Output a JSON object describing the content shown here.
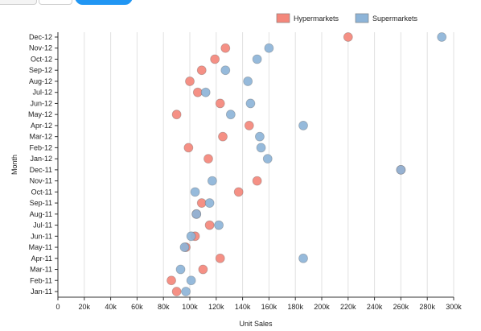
{
  "chart_data": {
    "type": "scatter",
    "xlabel": "Unit Sales",
    "ylabel": "Month",
    "xlim": [
      0,
      300000
    ],
    "x_ticks": [
      {
        "value": 0,
        "label": "0"
      },
      {
        "value": 20000,
        "label": "20k"
      },
      {
        "value": 40000,
        "label": "40k"
      },
      {
        "value": 60000,
        "label": "60k"
      },
      {
        "value": 80000,
        "label": "80k"
      },
      {
        "value": 100000,
        "label": "100k"
      },
      {
        "value": 120000,
        "label": "120k"
      },
      {
        "value": 140000,
        "label": "140k"
      },
      {
        "value": 160000,
        "label": "160k"
      },
      {
        "value": 180000,
        "label": "180k"
      },
      {
        "value": 200000,
        "label": "200k"
      },
      {
        "value": 220000,
        "label": "220k"
      },
      {
        "value": 240000,
        "label": "240k"
      },
      {
        "value": 260000,
        "label": "260k"
      },
      {
        "value": 280000,
        "label": "280k"
      },
      {
        "value": 300000,
        "label": "300k"
      }
    ],
    "categories": [
      "Dec-12",
      "Nov-12",
      "Oct-12",
      "Sep-12",
      "Aug-12",
      "Jul-12",
      "Jun-12",
      "May-12",
      "Apr-12",
      "Mar-12",
      "Feb-12",
      "Jan-12",
      "Dec-11",
      "Nov-11",
      "Oct-11",
      "Sep-11",
      "Aug-11",
      "Jul-11",
      "Jun-11",
      "May-11",
      "Apr-11",
      "Mar-11",
      "Feb-11",
      "Jan-11"
    ],
    "grid": "vertical",
    "legend_position": "top-right",
    "series": [
      {
        "name": "Hypermarkets",
        "color": "#f4877b",
        "values": [
          220000,
          127000,
          119000,
          109000,
          100000,
          106000,
          123000,
          90000,
          145000,
          125000,
          99000,
          114000,
          260000,
          151000,
          137000,
          109000,
          105000,
          115000,
          104000,
          97000,
          123000,
          110000,
          86000,
          90000
        ]
      },
      {
        "name": "Supermarkets",
        "color": "#8db4d8",
        "values": [
          291000,
          160000,
          151000,
          127000,
          144000,
          112000,
          146000,
          131000,
          186000,
          153000,
          154000,
          159000,
          260000,
          117000,
          104000,
          115000,
          105000,
          122000,
          101000,
          96000,
          186000,
          93000,
          101000,
          97000
        ]
      }
    ]
  }
}
